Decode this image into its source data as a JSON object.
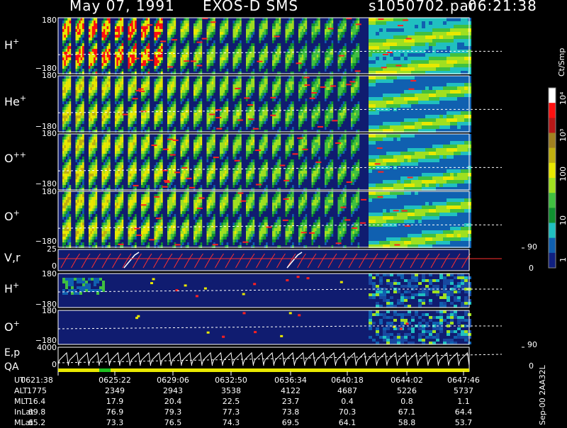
{
  "header": {
    "date": "May 07, 1991",
    "instrument": "EXOS-D SMS",
    "file": "s1050702.par",
    "time": "06:21:38"
  },
  "panels": [
    {
      "id": "h-plus-pitch",
      "species": "H",
      "charge": "+",
      "ytop": "180",
      "ybot": "−180"
    },
    {
      "id": "he-plus-pitch",
      "species": "He",
      "charge": "+",
      "ytop": "180",
      "ybot": "−180"
    },
    {
      "id": "o-plusplus-pitch",
      "species": "O",
      "charge": "++",
      "ytop": "180",
      "ybot": "−180"
    },
    {
      "id": "o-plus-pitch",
      "species": "O",
      "charge": "+",
      "ytop": "180",
      "ybot": "−180"
    },
    {
      "id": "vr",
      "label": "V,r",
      "ytop": "25",
      "ymid": "0",
      "rtop": "90",
      "rbot": "0"
    },
    {
      "id": "h-plus-2",
      "species": "H",
      "charge": "+",
      "ytop": "180",
      "ybot": "−180"
    },
    {
      "id": "o-plus-2",
      "species": "O",
      "charge": "+",
      "ytop": "180",
      "ybot": "−180",
      "rtop": "90"
    },
    {
      "id": "ep",
      "label1": "E,p",
      "label2": "QA",
      "ytop": "4000",
      "ymid": "0",
      "rbot": "0"
    }
  ],
  "colorbar": {
    "units": "Ct/Smp",
    "ticks": [
      "10⁴",
      "10³",
      "100",
      "10",
      "1"
    ],
    "colors": [
      "#ffffff",
      "#ff1010",
      "#b81818",
      "#a08020",
      "#c0b010",
      "#e8e800",
      "#a0e020",
      "#40c040",
      "#109030",
      "#20c0c0",
      "#1060b0",
      "#102080"
    ]
  },
  "side_text": "Sep-00  2AA32L",
  "info": {
    "labels": [
      "UT",
      "ALT",
      "MLT",
      "InLat",
      "MLat"
    ],
    "columns": [
      [
        "0621:38",
        "1775",
        "16.4",
        "69.8",
        "65.2"
      ],
      [
        "0625:22",
        "2349",
        "17.9",
        "76.9",
        "73.3"
      ],
      [
        "0629:06",
        "2943",
        "20.4",
        "79.3",
        "76.5"
      ],
      [
        "0632:50",
        "3538",
        "22.5",
        "77.3",
        "74.3"
      ],
      [
        "0636:34",
        "4122",
        "23.7",
        "73.8",
        "69.5"
      ],
      [
        "0640:18",
        "4687",
        "0.4",
        "70.3",
        "64.1"
      ],
      [
        "0644:02",
        "5226",
        "0.8",
        "67.1",
        "58.8"
      ],
      [
        "0647:46",
        "5737",
        "1.1",
        "64.4",
        "53.7"
      ]
    ]
  },
  "chart_data": {
    "type": "heatmap",
    "title": "May 07, 1991   EXOS-D SMS",
    "x": [
      "0621:38",
      "0625:22",
      "0629:06",
      "0632:50",
      "0636:34",
      "0640:18",
      "0644:02",
      "0647:46"
    ],
    "ylim": [
      -180,
      180
    ],
    "color_scale": "log",
    "color_range": [
      1,
      10000
    ],
    "colorbar_ticks": [
      1,
      10,
      100,
      1000,
      10000
    ],
    "panels": [
      "H+",
      "He+",
      "O++",
      "O+",
      "V,r",
      "H+",
      "O+",
      "E,p / QA"
    ]
  }
}
